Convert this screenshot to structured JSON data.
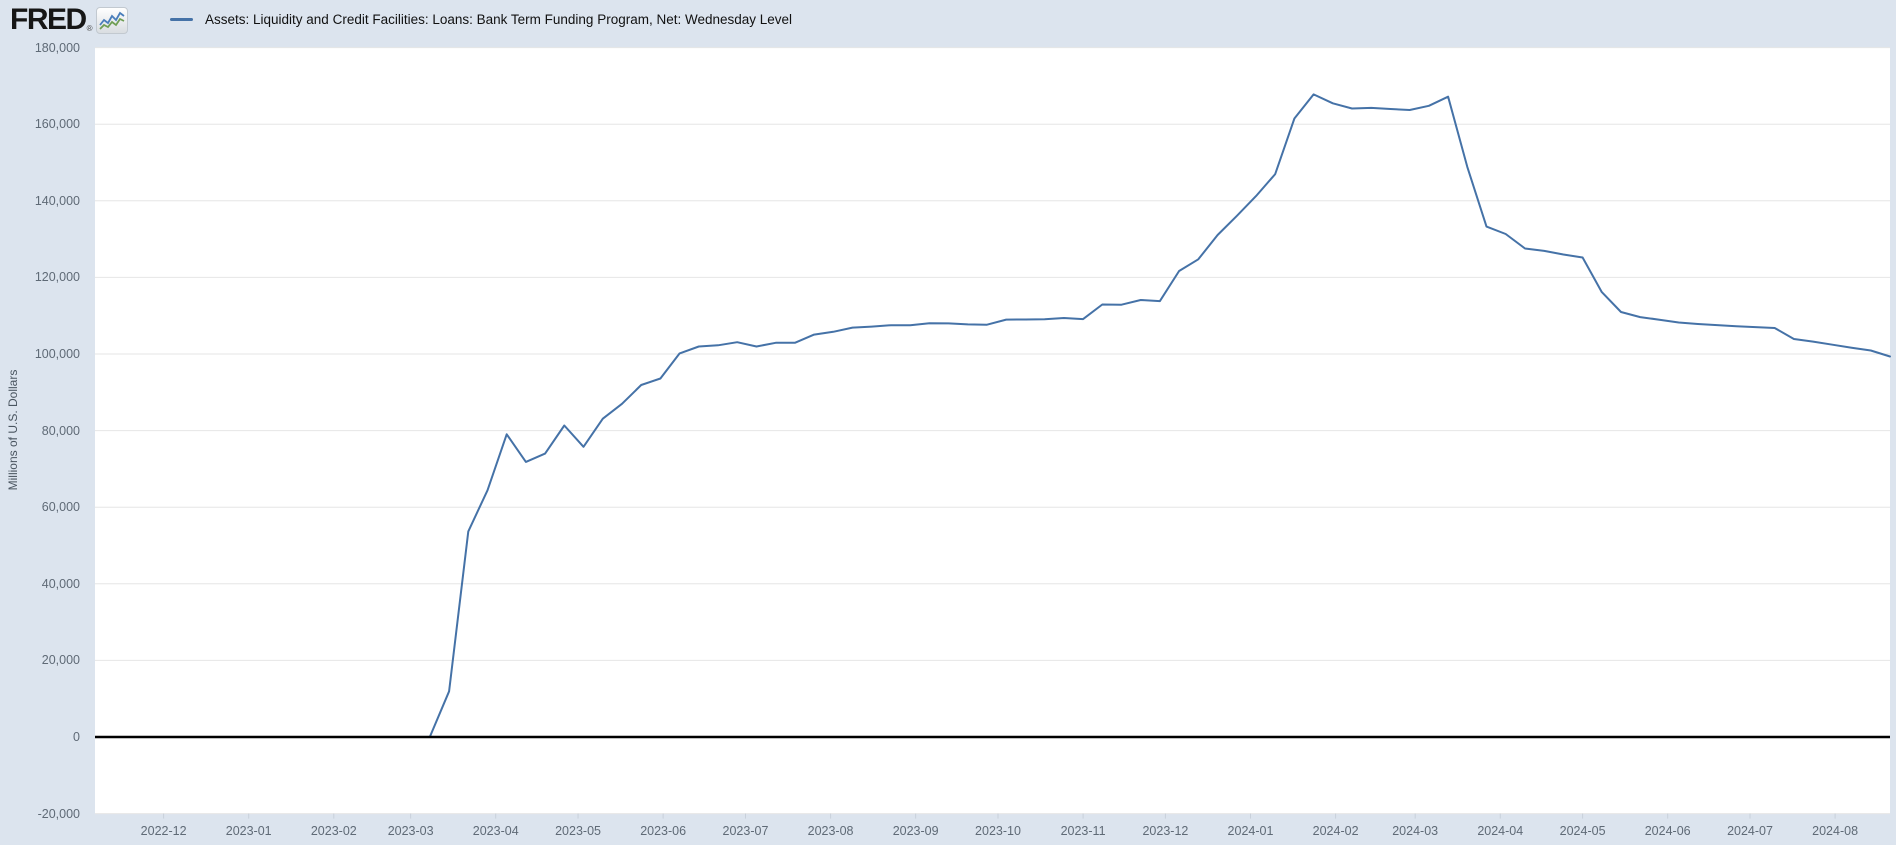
{
  "header": {
    "logo_text": "FRED",
    "logo_reg_mark": "®",
    "logo_badge_icon": "line-chart-sparkline-icon",
    "legend_label": "Assets: Liquidity and Credit Facilities: Loans: Bank Term Funding Program, Net: Wednesday Level"
  },
  "colors": {
    "background": "#dce4ee",
    "plot_background": "#ffffff",
    "gridline": "#e6e6e6",
    "zero_line": "#000000",
    "series_line": "#4572a7",
    "axis_text": "#5f6a76",
    "tick_mark": "#c8d0da"
  },
  "chart_data": {
    "type": "line",
    "title": "Assets: Liquidity and Credit Facilities: Loans: Bank Term Funding Program, Net: Wednesday Level",
    "xlabel": "",
    "ylabel": "Millions of U.S. Dollars",
    "ylim": [
      -20000,
      180000
    ],
    "xlim": [
      "2022-11-06",
      "2024-08-21"
    ],
    "grid": true,
    "legend_position": "top-left",
    "frequency": "weekly-wednesday",
    "y_ticks": [
      -20000,
      0,
      20000,
      40000,
      60000,
      80000,
      100000,
      120000,
      140000,
      160000,
      180000
    ],
    "x_ticks": [
      "2022-12",
      "2023-01",
      "2023-02",
      "2023-03",
      "2023-04",
      "2023-05",
      "2023-06",
      "2023-07",
      "2023-08",
      "2023-09",
      "2023-10",
      "2023-11",
      "2023-12",
      "2024-01",
      "2024-02",
      "2024-03",
      "2024-04",
      "2024-05",
      "2024-06",
      "2024-07",
      "2024-08"
    ],
    "series": [
      {
        "name": "Assets: Liquidity and Credit Facilities: Loans: Bank Term Funding Program, Net: Wednesday Level",
        "color": "#4572a7",
        "points": [
          [
            "2022-11-09",
            0
          ],
          [
            "2022-11-16",
            0
          ],
          [
            "2022-11-23",
            0
          ],
          [
            "2022-11-30",
            0
          ],
          [
            "2022-12-07",
            0
          ],
          [
            "2022-12-14",
            0
          ],
          [
            "2022-12-21",
            0
          ],
          [
            "2022-12-28",
            0
          ],
          [
            "2023-01-04",
            0
          ],
          [
            "2023-01-11",
            0
          ],
          [
            "2023-01-18",
            0
          ],
          [
            "2023-01-25",
            0
          ],
          [
            "2023-02-01",
            0
          ],
          [
            "2023-02-08",
            0
          ],
          [
            "2023-02-15",
            0
          ],
          [
            "2023-02-22",
            0
          ],
          [
            "2023-03-01",
            0
          ],
          [
            "2023-03-08",
            0
          ],
          [
            "2023-03-15",
            11943
          ],
          [
            "2023-03-22",
            53669
          ],
          [
            "2023-03-29",
            64403
          ],
          [
            "2023-04-05",
            79021
          ],
          [
            "2023-04-12",
            71837
          ],
          [
            "2023-04-19",
            73982
          ],
          [
            "2023-04-26",
            81327
          ],
          [
            "2023-05-03",
            75778
          ],
          [
            "2023-05-10",
            83101
          ],
          [
            "2023-05-17",
            87006
          ],
          [
            "2023-05-24",
            91907
          ],
          [
            "2023-05-31",
            93615
          ],
          [
            "2023-06-07",
            100161
          ],
          [
            "2023-06-14",
            101969
          ],
          [
            "2023-06-21",
            102260
          ],
          [
            "2023-06-28",
            103081
          ],
          [
            "2023-07-05",
            101959
          ],
          [
            "2023-07-12",
            102928
          ],
          [
            "2023-07-19",
            102930
          ],
          [
            "2023-07-26",
            105078
          ],
          [
            "2023-08-02",
            105808
          ],
          [
            "2023-08-09",
            106890
          ],
          [
            "2023-08-16",
            107156
          ],
          [
            "2023-08-23",
            107528
          ],
          [
            "2023-08-30",
            107532
          ],
          [
            "2023-09-06",
            108003
          ],
          [
            "2023-09-13",
            107993
          ],
          [
            "2023-09-20",
            107737
          ],
          [
            "2023-09-27",
            107642
          ],
          [
            "2023-10-04",
            108986
          ],
          [
            "2023-10-11",
            108995
          ],
          [
            "2023-10-18",
            109079
          ],
          [
            "2023-10-25",
            109399
          ],
          [
            "2023-11-01",
            109122
          ],
          [
            "2023-11-08",
            112920
          ],
          [
            "2023-11-15",
            112862
          ],
          [
            "2023-11-22",
            114094
          ],
          [
            "2023-11-29",
            113808
          ],
          [
            "2023-12-06",
            121664
          ],
          [
            "2023-12-13",
            124732
          ],
          [
            "2023-12-20",
            131081
          ],
          [
            "2023-12-27",
            136060
          ],
          [
            "2024-01-03",
            141240
          ],
          [
            "2024-01-10",
            146976
          ],
          [
            "2024-01-17",
            161498
          ],
          [
            "2024-01-24",
            167776
          ],
          [
            "2024-01-31",
            165451
          ],
          [
            "2024-02-07",
            164092
          ],
          [
            "2024-02-14",
            164252
          ],
          [
            "2024-02-21",
            163978
          ],
          [
            "2024-02-28",
            163712
          ],
          [
            "2024-03-06",
            164796
          ],
          [
            "2024-03-13",
            167176
          ],
          [
            "2024-03-20",
            148858
          ],
          [
            "2024-03-27",
            133272
          ],
          [
            "2024-04-03",
            131331
          ],
          [
            "2024-04-10",
            127541
          ],
          [
            "2024-04-17",
            126915
          ],
          [
            "2024-04-24",
            125972
          ],
          [
            "2024-05-01",
            125204
          ],
          [
            "2024-05-08",
            116163
          ],
          [
            "2024-05-15",
            110959
          ],
          [
            "2024-05-22",
            109640
          ],
          [
            "2024-05-29",
            108946
          ],
          [
            "2024-06-05",
            108214
          ],
          [
            "2024-06-12",
            107825
          ],
          [
            "2024-06-19",
            107534
          ],
          [
            "2024-06-26",
            107238
          ],
          [
            "2024-07-03",
            107017
          ],
          [
            "2024-07-10",
            106777
          ],
          [
            "2024-07-17",
            103922
          ],
          [
            "2024-07-24",
            103237
          ],
          [
            "2024-07-31",
            102417
          ],
          [
            "2024-08-07",
            101639
          ],
          [
            "2024-08-14",
            100912
          ],
          [
            "2024-08-21",
            99341
          ]
        ]
      }
    ]
  }
}
